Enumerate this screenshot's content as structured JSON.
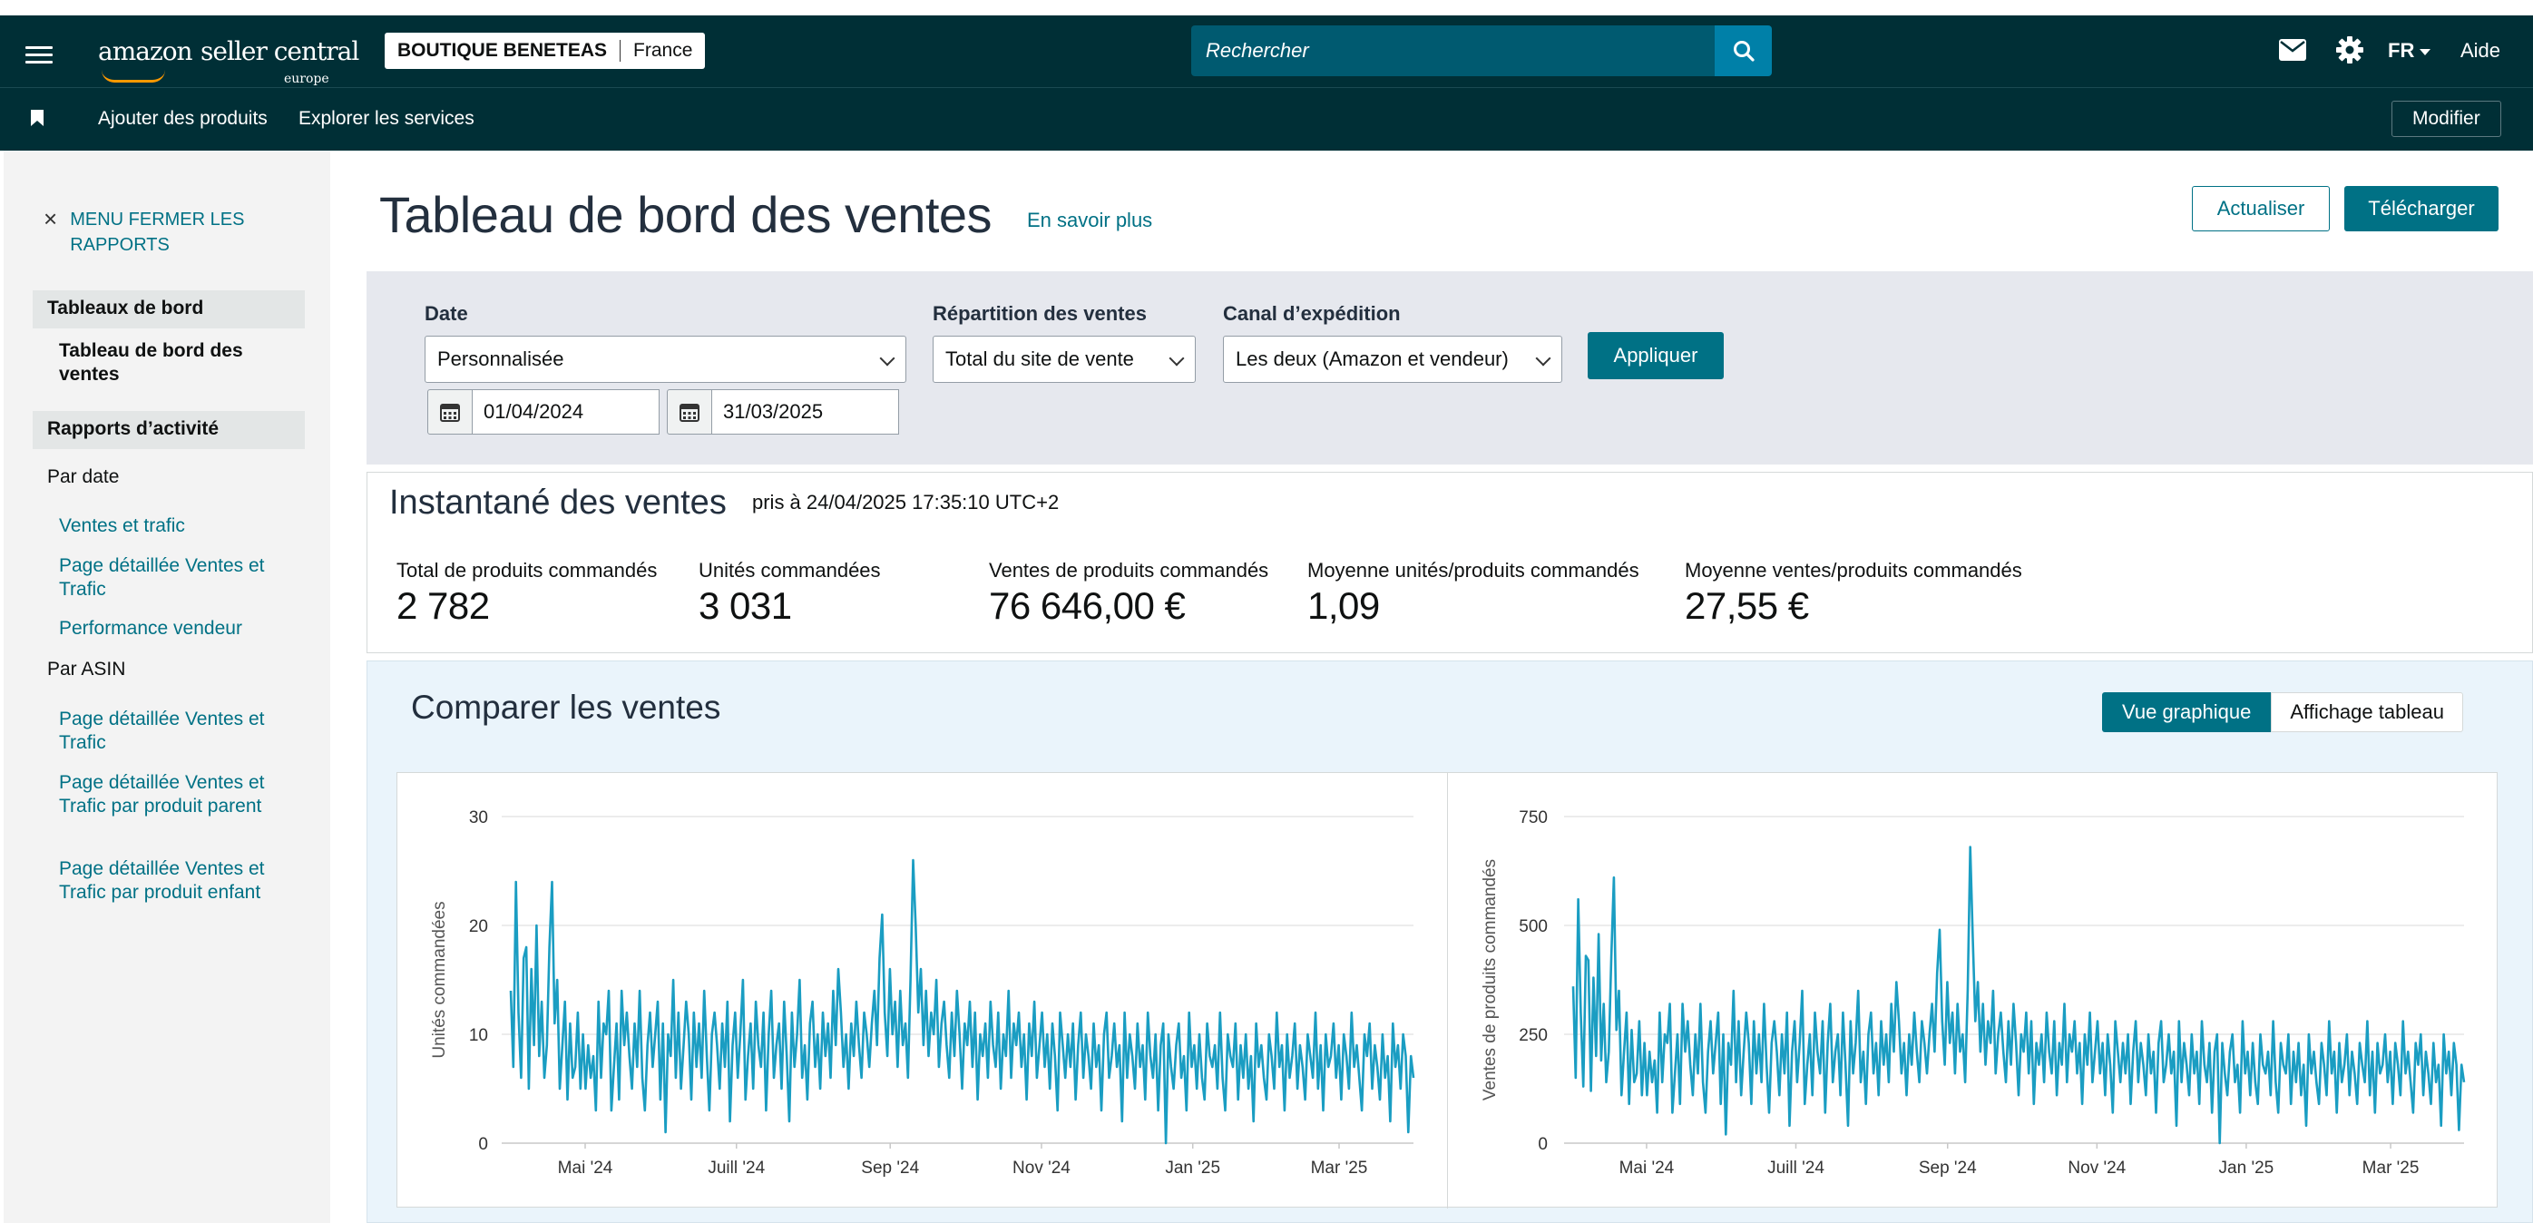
{
  "topbar": {
    "logo_main": "amazon",
    "logo_sub": "seller central",
    "logo_region": "europe",
    "store_name": "BOUTIQUE BENETEAS",
    "store_country": "France",
    "search_placeholder": "Rechercher",
    "language": "FR",
    "help": "Aide"
  },
  "subbar": {
    "links": [
      "Ajouter des produits",
      "Explorer les services"
    ],
    "modify": "Modifier"
  },
  "sidebar": {
    "close_label": "MENU FERMER LES RAPPORTS",
    "section1": "Tableaux de bord",
    "active_item": "Tableau de bord des ventes",
    "section2": "Rapports d’activité",
    "group_date": "Par date",
    "date_links": [
      "Ventes et trafic",
      "Page détaillée Ventes et Trafic",
      "Performance vendeur"
    ],
    "group_asin": "Par ASIN",
    "asin_links": [
      "Page détaillée Ventes et Trafic",
      "Page détaillée Ventes et Trafic par produit parent",
      "Page détaillée Ventes et Trafic par produit enfant"
    ]
  },
  "header": {
    "title": "Tableau de bord des ventes",
    "learn_more": "En savoir plus",
    "refresh": "Actualiser",
    "download": "Télécharger"
  },
  "filters": {
    "date_label": "Date",
    "date_value": "Personnalisée",
    "start_date": "01/04/2024",
    "end_date": "31/03/2025",
    "breakdown_label": "Répartition des ventes",
    "breakdown_value": "Total du site de vente",
    "channel_label": "Canal d’expédition",
    "channel_value": "Les deux (Amazon et vendeur)",
    "apply": "Appliquer"
  },
  "snapshot": {
    "title": "Instantané des ventes",
    "taken_at": "pris à 24/04/2025 17:35:10 UTC+2",
    "metrics": [
      {
        "label": "Total de produits commandés",
        "value": "2 782"
      },
      {
        "label": "Unités commandées",
        "value": "3 031"
      },
      {
        "label": "Ventes de produits commandés",
        "value": "76 646,00 €"
      },
      {
        "label": "Moyenne unités/produits commandés",
        "value": "1,09"
      },
      {
        "label": "Moyenne ventes/produits commandés",
        "value": "27,55 €"
      }
    ]
  },
  "compare": {
    "title": "Comparer les ventes",
    "view_chart": "Vue graphique",
    "view_table": "Affichage tableau"
  },
  "colors": {
    "nav_bg": "#002f36",
    "accent": "#007185",
    "line": "#1a9dc2",
    "orange": "#ff9900"
  },
  "chart_data": [
    {
      "type": "line",
      "ylabel": "Unités commandées",
      "ylim": [
        0,
        30
      ],
      "yticks": [
        "0",
        "10",
        "20",
        "30"
      ],
      "x_ticks": [
        "Mai '24",
        "Juill '24",
        "Sep '24",
        "Nov '24",
        "Jan '25",
        "Mar '25"
      ],
      "x_range": [
        "2024-04-01",
        "2025-03-31"
      ],
      "grid": true,
      "series": [
        {
          "values": [
            14,
            7,
            24,
            12,
            6,
            17,
            18,
            5,
            16,
            9,
            20,
            8,
            13,
            6,
            9,
            18,
            24,
            11,
            15,
            5,
            9,
            13,
            4,
            11,
            6,
            7,
            12,
            5,
            10,
            5,
            9,
            6,
            8,
            3,
            13,
            6,
            11,
            10,
            14,
            3,
            7,
            11,
            4,
            14,
            9,
            12,
            8,
            5,
            11,
            7,
            14,
            6,
            3,
            9,
            12,
            7,
            10,
            13,
            4,
            11,
            1,
            10,
            8,
            15,
            6,
            12,
            5,
            9,
            13,
            10,
            4,
            12,
            7,
            11,
            6,
            14,
            8,
            3,
            10,
            12,
            9,
            5,
            11,
            7,
            13,
            2,
            9,
            12,
            6,
            10,
            15,
            4,
            8,
            11,
            5,
            13,
            9,
            7,
            12,
            3,
            10,
            14,
            6,
            9,
            11,
            5,
            13,
            8,
            2,
            12,
            7,
            10,
            15,
            6,
            9,
            4,
            11,
            13,
            7,
            10,
            5,
            12,
            8,
            11,
            6,
            14,
            9,
            16,
            12,
            7,
            10,
            5,
            11,
            8,
            13,
            9,
            6,
            12,
            10,
            7,
            11,
            14,
            9,
            17,
            21,
            12,
            8,
            16,
            10,
            13,
            7,
            14,
            9,
            11,
            6,
            15,
            26,
            20,
            12,
            16,
            9,
            14,
            8,
            12,
            10,
            15,
            7,
            11,
            13,
            9,
            6,
            12,
            8,
            14,
            10,
            5,
            11,
            9,
            13,
            7,
            12,
            4,
            10,
            8,
            11,
            6,
            13,
            9,
            7,
            12,
            5,
            10,
            8,
            14,
            6,
            11,
            9,
            12,
            7,
            10,
            4,
            11,
            8,
            13,
            6,
            9,
            12,
            7,
            10,
            5,
            11,
            8,
            3,
            12,
            9,
            6,
            10,
            7,
            11,
            4,
            9,
            12,
            6,
            10,
            8,
            5,
            11,
            7,
            9,
            3,
            10,
            12,
            6,
            8,
            11,
            7,
            9,
            2,
            12,
            6,
            10,
            8,
            5,
            11,
            7,
            9,
            4,
            12,
            8,
            6,
            10,
            3,
            9,
            11,
            0,
            10,
            7,
            5,
            9,
            11,
            6,
            8,
            3,
            12,
            7,
            9,
            5,
            10,
            6,
            4,
            11,
            8,
            7,
            9,
            5,
            12,
            6,
            3,
            10,
            8,
            7,
            11,
            4,
            9,
            6,
            10,
            5,
            8,
            2,
            11,
            7,
            9,
            6,
            4,
            10,
            8,
            5,
            12,
            7,
            9,
            3,
            10,
            6,
            8,
            11,
            5,
            9,
            7,
            4,
            10,
            8,
            6,
            12,
            5,
            9,
            3,
            10,
            7,
            8,
            11,
            6,
            9,
            4,
            10,
            8,
            5,
            12,
            7,
            9,
            6,
            3,
            10,
            8,
            11,
            5,
            9,
            7,
            4,
            10,
            6,
            8,
            2,
            11,
            7,
            9,
            5,
            10,
            8,
            1,
            8,
            6
          ]
        }
      ]
    },
    {
      "type": "line",
      "ylabel": "Ventes de produits commandés",
      "ylim": [
        0,
        750
      ],
      "yticks": [
        "0",
        "250",
        "500",
        "750"
      ],
      "x_ticks": [
        "Mai '24",
        "Juill '24",
        "Sep '24",
        "Nov '24",
        "Jan '25",
        "Mar '25"
      ],
      "x_range": [
        "2024-04-01",
        "2025-03-31"
      ],
      "grid": true,
      "series": [
        {
          "values": [
            360,
            150,
            560,
            300,
            130,
            430,
            420,
            120,
            380,
            200,
            480,
            190,
            320,
            140,
            210,
            430,
            610,
            260,
            350,
            110,
            210,
            300,
            90,
            260,
            140,
            160,
            280,
            110,
            230,
            110,
            210,
            140,
            190,
            70,
            300,
            140,
            250,
            230,
            320,
            70,
            160,
            250,
            90,
            320,
            210,
            280,
            180,
            110,
            250,
            160,
            320,
            140,
            70,
            210,
            280,
            160,
            230,
            300,
            90,
            250,
            20,
            230,
            180,
            350,
            140,
            280,
            110,
            210,
            300,
            230,
            90,
            280,
            160,
            250,
            140,
            320,
            180,
            70,
            230,
            280,
            210,
            110,
            250,
            160,
            300,
            40,
            210,
            280,
            140,
            230,
            350,
            90,
            180,
            250,
            110,
            300,
            210,
            160,
            280,
            70,
            230,
            320,
            140,
            210,
            250,
            110,
            300,
            180,
            40,
            280,
            160,
            230,
            350,
            140,
            210,
            90,
            250,
            300,
            160,
            230,
            110,
            280,
            180,
            250,
            140,
            320,
            210,
            370,
            280,
            160,
            230,
            110,
            250,
            180,
            300,
            210,
            140,
            280,
            230,
            160,
            250,
            320,
            210,
            390,
            490,
            280,
            180,
            370,
            230,
            300,
            160,
            320,
            210,
            250,
            140,
            350,
            680,
            470,
            280,
            370,
            210,
            320,
            180,
            280,
            230,
            350,
            160,
            250,
            300,
            210,
            140,
            280,
            180,
            320,
            230,
            110,
            250,
            210,
            300,
            160,
            280,
            90,
            230,
            180,
            250,
            140,
            300,
            210,
            160,
            280,
            110,
            230,
            180,
            320,
            140,
            250,
            210,
            280,
            160,
            230,
            90,
            250,
            180,
            300,
            140,
            210,
            280,
            160,
            230,
            110,
            250,
            180,
            70,
            280,
            210,
            140,
            230,
            160,
            250,
            90,
            210,
            280,
            140,
            230,
            180,
            110,
            250,
            160,
            210,
            70,
            230,
            280,
            140,
            180,
            250,
            160,
            210,
            40,
            280,
            140,
            230,
            180,
            110,
            250,
            160,
            210,
            90,
            280,
            180,
            140,
            230,
            70,
            210,
            250,
            0,
            230,
            160,
            110,
            210,
            250,
            140,
            180,
            70,
            280,
            160,
            210,
            110,
            230,
            140,
            90,
            250,
            180,
            160,
            210,
            110,
            280,
            140,
            70,
            230,
            180,
            160,
            250,
            90,
            210,
            140,
            230,
            110,
            180,
            40,
            250,
            160,
            210,
            140,
            90,
            230,
            180,
            110,
            280,
            160,
            210,
            70,
            230,
            140,
            180,
            250,
            110,
            210,
            160,
            90,
            230,
            180,
            140,
            280,
            110,
            210,
            70,
            230,
            160,
            180,
            250,
            140,
            210,
            90,
            230,
            180,
            110,
            280,
            160,
            210,
            140,
            70,
            230,
            180,
            250,
            110,
            210,
            160,
            90,
            230,
            140,
            180,
            40,
            250,
            160,
            210,
            110,
            230,
            180,
            30,
            180,
            140
          ]
        }
      ]
    }
  ]
}
